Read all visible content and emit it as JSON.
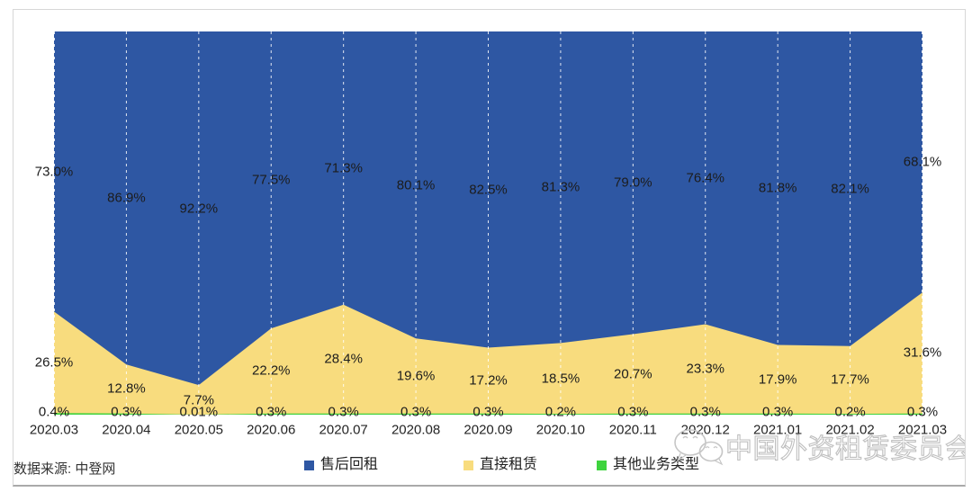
{
  "chart_data": {
    "type": "area",
    "stacking": "percent",
    "title": "",
    "xlabel": "",
    "ylabel": "",
    "ylim": [
      0,
      100
    ],
    "grid": "vertical-dashed-white",
    "legend_position": "bottom",
    "categories": [
      "2020.03",
      "2020.04",
      "2020.05",
      "2020.06",
      "2020.07",
      "2020.08",
      "2020.09",
      "2020.10",
      "2020.11",
      "2020.12",
      "2021.01",
      "2021.02",
      "2021.03"
    ],
    "series": [
      {
        "name": "售后回租",
        "color": "#2E57A3",
        "values": [
          73.0,
          86.9,
          92.2,
          77.5,
          71.3,
          80.1,
          82.5,
          81.3,
          79.0,
          76.4,
          81.8,
          82.1,
          68.1
        ],
        "labels": [
          "73.0%",
          "86.9%",
          "92.2%",
          "77.5%",
          "71.3%",
          "80.1%",
          "82.5%",
          "81.3%",
          "79.0%",
          "76.4%",
          "81.8%",
          "82.1%",
          "68.1%"
        ]
      },
      {
        "name": "直接租赁",
        "color": "#F8DC7E",
        "values": [
          26.5,
          12.8,
          7.7,
          22.2,
          28.4,
          19.6,
          17.2,
          18.5,
          20.7,
          23.3,
          17.9,
          17.7,
          31.6
        ],
        "labels": [
          "26.5%",
          "12.8%",
          "7.7%",
          "22.2%",
          "28.4%",
          "19.6%",
          "17.2%",
          "18.5%",
          "20.7%",
          "23.3%",
          "17.9%",
          "17.7%",
          "31.6%"
        ]
      },
      {
        "name": "其他业务类型",
        "color": "#3ED33E",
        "values": [
          0.4,
          0.3,
          0.01,
          0.3,
          0.3,
          0.3,
          0.3,
          0.2,
          0.3,
          0.3,
          0.3,
          0.2,
          0.3
        ],
        "labels": [
          "0.4%",
          "0.3%",
          "0.01%",
          "0.3%",
          "0.3%",
          "0.3%",
          "0.3%",
          "0.2%",
          "0.3%",
          "0.3%",
          "0.3%",
          "0.2%",
          "0.3%"
        ]
      }
    ]
  },
  "source_note": "数据来源: 中登网",
  "watermark": {
    "text": "中国外资租赁委员会",
    "icon": "wechat-logo-icon"
  },
  "colors": {
    "grid": "rgba(255,255,255,0.85)",
    "border": "#d7d7d7",
    "border_bottom": "#a9a9a9",
    "label": "#1c1c1c",
    "watermark": "#bfbfbf"
  }
}
